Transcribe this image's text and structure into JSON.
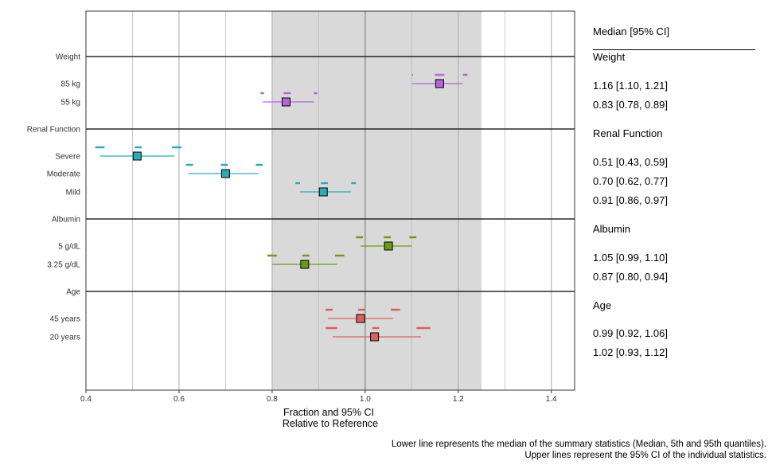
{
  "chart_data": {
    "type": "forest",
    "xlabel": [
      "Fraction and 95% CI",
      "Relative to Reference"
    ],
    "xlim": [
      0.4,
      1.45
    ],
    "x_ticks": [
      0.4,
      0.6,
      0.8,
      1.0,
      1.2,
      1.4
    ],
    "x_tick_labels": [
      "0.4",
      "0.6",
      "0.8",
      "1.0",
      "1.2",
      "1.4"
    ],
    "minor_gridlines": [
      0.5,
      0.7,
      0.9,
      1.1,
      1.3
    ],
    "reference_band": [
      0.8,
      1.25
    ],
    "reference_line": 1.0,
    "table_header": "Median [95% CI]",
    "groups": [
      {
        "label": "Weight",
        "rows": [
          {
            "label": "85 kg",
            "median": 1.16,
            "lo": 1.1,
            "hi": 1.21,
            "color": "#b266d9",
            "upper": {
              "lo": [
                1.1,
                1.1
              ],
              "med": [
                1.15,
                1.17
              ],
              "hi": [
                1.21,
                1.22
              ]
            },
            "text": "1.16 [1.10, 1.21]"
          },
          {
            "label": "55 kg",
            "median": 0.83,
            "lo": 0.78,
            "hi": 0.89,
            "color": "#b266d9",
            "upper": {
              "lo": [
                0.775,
                0.78
              ],
              "med": [
                0.825,
                0.84
              ],
              "hi": [
                0.89,
                0.895
              ]
            },
            "text": "0.83 [0.78, 0.89]"
          }
        ]
      },
      {
        "label": "Renal Function",
        "rows": [
          {
            "label": "Severe",
            "median": 0.51,
            "lo": 0.43,
            "hi": 0.59,
            "color": "#2aabb5",
            "upper": {
              "lo": [
                0.42,
                0.44
              ],
              "med": [
                0.505,
                0.52
              ],
              "hi": [
                0.585,
                0.605
              ]
            },
            "text": "0.51 [0.43, 0.59]"
          },
          {
            "label": "Moderate",
            "median": 0.7,
            "lo": 0.62,
            "hi": 0.77,
            "color": "#2aabb5",
            "upper": {
              "lo": [
                0.615,
                0.63
              ],
              "med": [
                0.69,
                0.705
              ],
              "hi": [
                0.765,
                0.78
              ]
            },
            "text": "0.70 [0.62, 0.77]"
          },
          {
            "label": "Mild",
            "median": 0.91,
            "lo": 0.86,
            "hi": 0.97,
            "color": "#2aabb5",
            "upper": {
              "lo": [
                0.85,
                0.86
              ],
              "med": [
                0.905,
                0.92
              ],
              "hi": [
                0.97,
                0.98
              ]
            },
            "text": "0.91 [0.86, 0.97]"
          }
        ]
      },
      {
        "label": "Albumin",
        "rows": [
          {
            "label": "5 g/dL",
            "median": 1.05,
            "lo": 0.99,
            "hi": 1.1,
            "color": "#6b9a1a",
            "upper": {
              "lo": [
                0.98,
                0.995
              ],
              "med": [
                1.04,
                1.055
              ],
              "hi": [
                1.095,
                1.11
              ]
            },
            "text": "1.05 [0.99, 1.10]"
          },
          {
            "label": "3.25 g/dL",
            "median": 0.87,
            "lo": 0.8,
            "hi": 0.94,
            "color": "#6b9a1a",
            "upper": {
              "lo": [
                0.79,
                0.81
              ],
              "med": [
                0.865,
                0.88
              ],
              "hi": [
                0.935,
                0.955
              ]
            },
            "text": "0.87 [0.80, 0.94]"
          }
        ]
      },
      {
        "label": "Age",
        "rows": [
          {
            "label": "45 years",
            "median": 0.99,
            "lo": 0.92,
            "hi": 1.06,
            "color": "#d9635a",
            "upper": {
              "lo": [
                0.915,
                0.93
              ],
              "med": [
                0.985,
                1.0
              ],
              "hi": [
                1.055,
                1.075
              ]
            },
            "text": "0.99 [0.92, 1.06]"
          },
          {
            "label": "20 years",
            "median": 1.02,
            "lo": 0.93,
            "hi": 1.12,
            "color": "#d9635a",
            "upper": {
              "lo": [
                0.915,
                0.94
              ],
              "med": [
                1.015,
                1.03
              ],
              "hi": [
                1.11,
                1.14
              ]
            },
            "text": "1.02 [0.93, 1.12]"
          }
        ]
      }
    ]
  },
  "caption": {
    "line1": "Lower line represents the median of the summary statistics (Median, 5th and 95th quantiles).",
    "line2": "Upper lines represent the 95% CI of the individual statistics."
  }
}
